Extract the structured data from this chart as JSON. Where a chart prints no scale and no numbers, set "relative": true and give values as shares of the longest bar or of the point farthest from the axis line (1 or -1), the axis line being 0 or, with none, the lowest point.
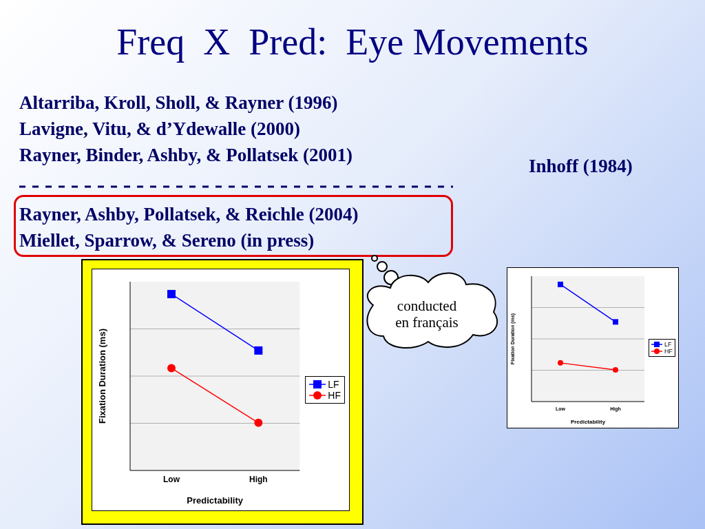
{
  "chart_data": [
    {
      "type": "line",
      "title": "Freq  X  Pred:  Eye Movements",
      "annotations": [
        "Altarriba, Kroll, Sholl, & Rayner (1996)",
        "Lavigne, Vitu, & d’Ydewalle (2000)",
        "Rayner, Binder, Ashby, & Pollatsek (2001)",
        "Rayner, Ashby, Pollatsek, & Reichle (2004)",
        "Miellet, Sparrow, & Sereno (in press)",
        "conducted en français"
      ],
      "categories": [
        "Low",
        "High"
      ],
      "xlabel": "Predictability",
      "ylabel": "Fixation Duration (ms)",
      "relative": true,
      "grid": "y",
      "legend": "right",
      "series": [
        {
          "name": "LF",
          "color": "#0000ff",
          "marker": "square",
          "values": [
            1,
            0.68
          ]
        },
        {
          "name": "HF",
          "color": "#ff0000",
          "marker": "circle",
          "values": [
            0.58,
            0.27
          ]
        }
      ]
    },
    {
      "type": "line",
      "title": "Inhoff (1984)",
      "categories": [
        "Low",
        "High"
      ],
      "xlabel": "Predictability",
      "ylabel": "Fixation Duration (ms)",
      "relative": true,
      "grid": "y",
      "legend": "right",
      "series": [
        {
          "name": "LF",
          "color": "#0000ff",
          "marker": "square",
          "values": [
            1,
            0.68
          ]
        },
        {
          "name": "HF",
          "color": "#ff0000",
          "marker": "circle",
          "values": [
            0.33,
            0.27
          ]
        }
      ]
    }
  ]
}
